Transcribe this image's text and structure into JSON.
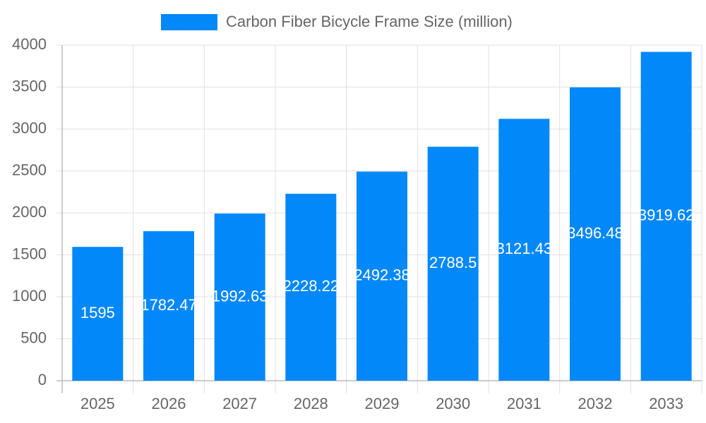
{
  "chart_data": {
    "type": "bar",
    "categories": [
      "2025",
      "2026",
      "2027",
      "2028",
      "2029",
      "2030",
      "2031",
      "2032",
      "2033"
    ],
    "series": [
      {
        "name": "Carbon Fiber Bicycle Frame Size (million)",
        "color": "#0388fa",
        "values": [
          1595,
          1782.47,
          1992.63,
          2228.22,
          2492.38,
          2788.5,
          3121.43,
          3496.48,
          3919.62
        ]
      }
    ],
    "ylim": [
      0,
      4000
    ],
    "yticks": [
      0,
      500,
      1000,
      1500,
      2000,
      2500,
      3000,
      3500,
      4000
    ],
    "grid": true,
    "legend": "top"
  }
}
